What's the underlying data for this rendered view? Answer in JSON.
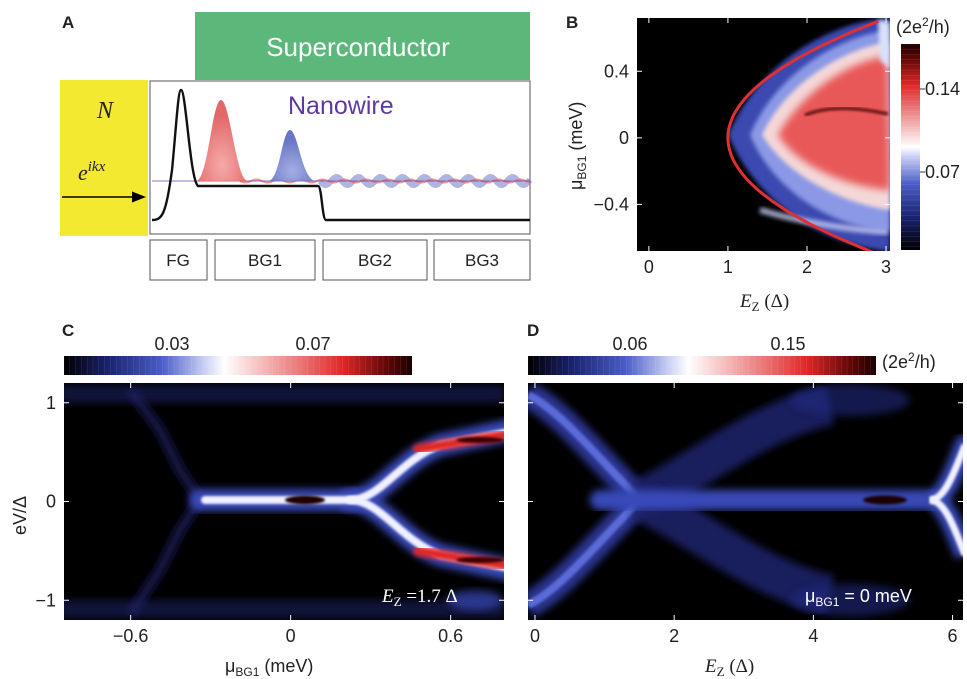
{
  "panels": {
    "a": {
      "letter": "A",
      "superconductor": "Superconductor",
      "nanowire": "Nanowire",
      "lead_label": "N",
      "wave_base": "e",
      "wave_exp": "ikx",
      "gates": [
        "FG",
        "BG1",
        "BG2",
        "BG3"
      ]
    },
    "b": {
      "letter": "B",
      "xlabel_sym": "E",
      "xlabel_sub": "Z",
      "xlabel_unit": " (Δ)",
      "ylabel_sym": "μ",
      "ylabel_sub": "BG1",
      "ylabel_unit": " (meV)",
      "colorbar_unit": "(2e",
      "colorbar_unit_sup": "2",
      "colorbar_unit_end": "/h)",
      "colorbar_ticks": [
        "0.14",
        "0.07"
      ]
    },
    "c": {
      "letter": "C",
      "xlabel_sym": "μ",
      "xlabel_sub": "BG1",
      "xlabel_unit": " (meV)",
      "ylabel": "eV/Δ",
      "annotation_sym": "E",
      "annotation_sub": "Z",
      "annotation_val": " =1.7 Δ",
      "colorbar_ticks": [
        "0.03",
        "0.07"
      ]
    },
    "d": {
      "letter": "D",
      "xlabel_sym": "E",
      "xlabel_sub": "Z",
      "xlabel_unit": " (Δ)",
      "annotation_sym": "μ",
      "annotation_sub": "BG1",
      "annotation_val": " = 0 meV",
      "colorbar_unit": "(2e",
      "colorbar_unit_sup": "2",
      "colorbar_unit_end": "/h)",
      "colorbar_ticks": [
        "0.06",
        "0.15"
      ]
    }
  },
  "colors": {
    "superconductor": "#5cb87a",
    "lead": "#f2e930",
    "nanowire": "#5e3a9e",
    "boundary": "#e03030",
    "peak_red": "#e86a6a",
    "peak_blue": "#6b78c8"
  },
  "chart_data": [
    {
      "panel": "B",
      "type": "heatmap",
      "xlabel": "E_Z (Δ)",
      "ylabel": "μ_BG1 (meV)",
      "xlim": [
        -0.15,
        3.05
      ],
      "ylim": [
        -0.68,
        0.72
      ],
      "x_ticks": [
        0,
        1,
        2,
        3
      ],
      "y_ticks": [
        -0.4,
        0,
        0.4
      ],
      "boundary_curve": {
        "vertex_Ez": 1.0,
        "reaches_Ez": 2.9,
        "reaches_mu": 0.7
      },
      "colorbar_ticks": [
        0.14,
        0.07
      ]
    },
    {
      "panel": "C",
      "type": "heatmap",
      "xlabel": "μ_BG1 (meV)",
      "ylabel": "eV/Δ",
      "xlim": [
        -0.85,
        0.8
      ],
      "ylim": [
        -1.2,
        1.2
      ],
      "x_ticks": [
        -0.6,
        0,
        0.6
      ],
      "y_ticks": [
        -1,
        0,
        1
      ],
      "annotation": "E_Z =1.7 Δ",
      "colorbar_ticks": [
        0.03,
        0.07
      ]
    },
    {
      "panel": "D",
      "type": "heatmap",
      "xlabel": "E_Z (Δ)",
      "xlim": [
        -0.1,
        6.15
      ],
      "ylim": [
        -1.2,
        1.2
      ],
      "x_ticks": [
        0,
        2,
        4,
        6
      ],
      "annotation": "μ_BG1 = 0 meV",
      "colorbar_ticks": [
        0.06,
        0.15
      ]
    }
  ]
}
